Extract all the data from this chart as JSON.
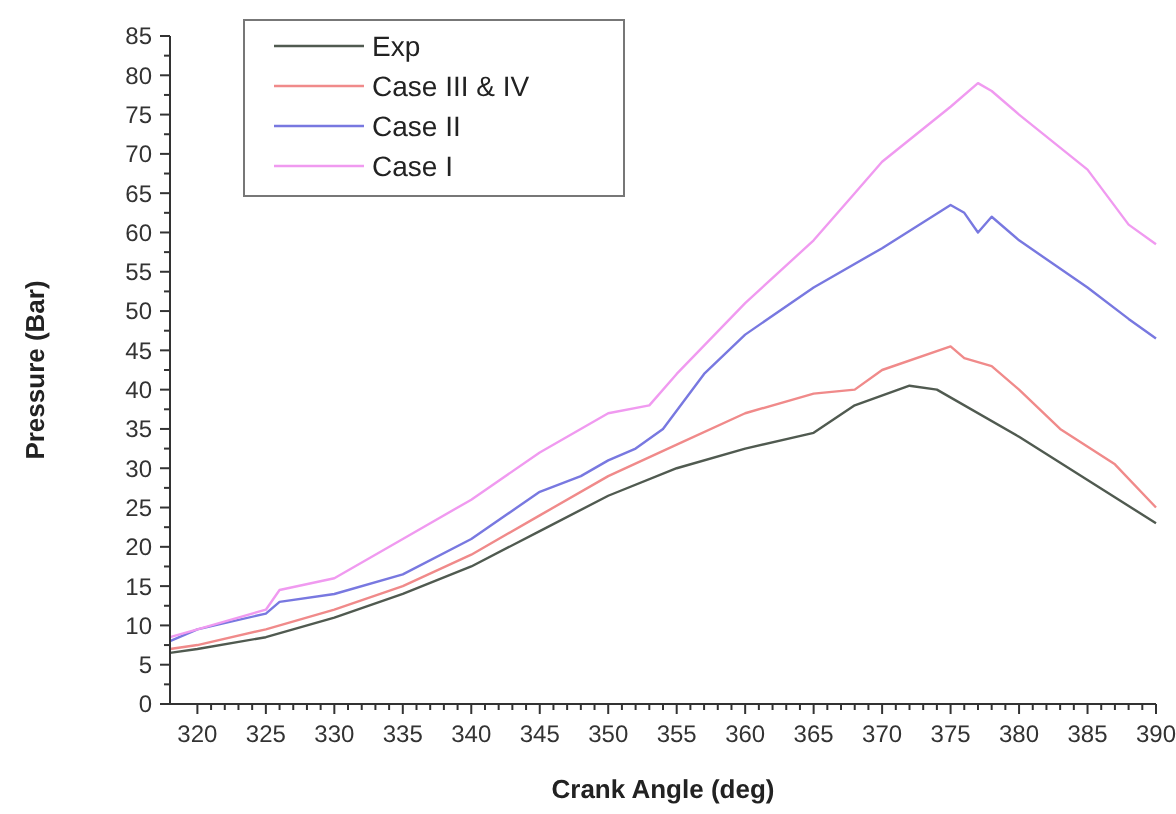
{
  "chart_data": {
    "type": "line",
    "xlabel": "Crank Angle (deg)",
    "ylabel": "Pressure (Bar)",
    "xlim": [
      318,
      390
    ],
    "xticks": [
      320,
      325,
      330,
      335,
      340,
      345,
      350,
      355,
      360,
      365,
      370,
      375,
      380,
      385,
      390
    ],
    "ylim": [
      0,
      85
    ],
    "yticks": [
      0,
      5,
      10,
      15,
      20,
      25,
      30,
      35,
      40,
      45,
      50,
      55,
      60,
      65,
      70,
      75,
      80,
      85
    ],
    "grid": false,
    "legend": "top left",
    "marker": "none",
    "line_style": "solid",
    "series": [
      {
        "name": "Exp",
        "color": "#505a50",
        "x": [
          318,
          320,
          325,
          330,
          335,
          340,
          345,
          350,
          355,
          360,
          365,
          368,
          372,
          374,
          380,
          385,
          390
        ],
        "values": [
          6.5,
          7,
          8.5,
          11,
          14,
          17.5,
          22,
          26.5,
          30,
          32.5,
          34.5,
          38,
          40.5,
          40,
          34,
          28.5,
          23
        ]
      },
      {
        "name": "Case III & IV",
        "color": "#f08a8a",
        "x": [
          318,
          320,
          325,
          330,
          335,
          340,
          345,
          350,
          355,
          360,
          365,
          368,
          370,
          375,
          376,
          378,
          380,
          383,
          387,
          390
        ],
        "values": [
          7,
          7.5,
          9.5,
          12,
          15,
          19,
          24,
          29,
          33,
          37,
          39.5,
          40,
          42.5,
          45.5,
          44,
          43,
          40,
          35,
          30.5,
          25
        ]
      },
      {
        "name": "Case II",
        "color": "#7878e0",
        "x": [
          318,
          320,
          325,
          326,
          330,
          335,
          340,
          345,
          348,
          350,
          352,
          354,
          357,
          360,
          365,
          370,
          375,
          376,
          377,
          378,
          380,
          385,
          388,
          390
        ],
        "values": [
          8,
          9.5,
          11.5,
          13,
          14,
          16.5,
          21,
          27,
          29,
          31,
          32.5,
          35,
          42,
          47,
          53,
          58,
          63.5,
          62.5,
          60,
          62,
          59,
          53,
          49,
          46.5
        ]
      },
      {
        "name": "Case I",
        "color": "#f09af0",
        "x": [
          318,
          320,
          325,
          326,
          330,
          335,
          340,
          345,
          350,
          353,
          355,
          360,
          365,
          368,
          370,
          375,
          377,
          378,
          380,
          385,
          388,
          390
        ],
        "values": [
          8.5,
          9.5,
          12,
          14.5,
          16,
          21,
          26,
          32,
          37,
          38,
          42,
          51,
          59,
          65,
          69,
          76,
          79,
          78,
          75,
          68,
          61,
          58.5
        ]
      }
    ]
  }
}
